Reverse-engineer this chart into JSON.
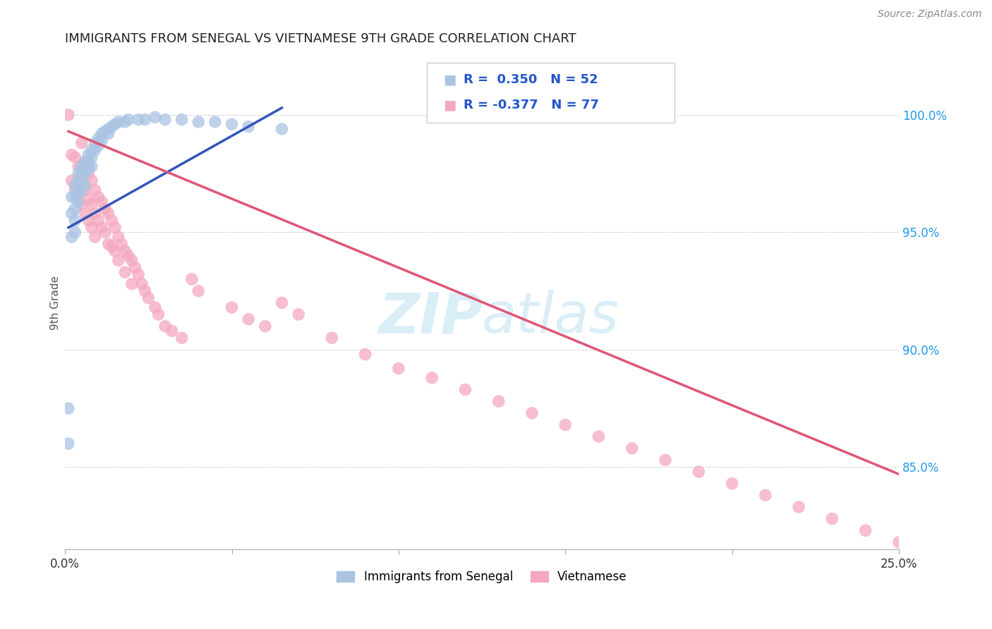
{
  "title": "IMMIGRANTS FROM SENEGAL VS VIETNAMESE 9TH GRADE CORRELATION CHART",
  "source": "Source: ZipAtlas.com",
  "ylabel": "9th Grade",
  "ytick_values": [
    0.85,
    0.9,
    0.95,
    1.0
  ],
  "xlim": [
    0.0,
    0.25
  ],
  "ylim": [
    0.815,
    1.025
  ],
  "legend_r_senegal": "R =  0.350",
  "legend_n_senegal": "N = 52",
  "legend_r_vietnamese": "R = -0.377",
  "legend_n_vietnamese": "N = 77",
  "color_senegal": "#aac4e2",
  "color_vietnamese": "#f4a8be",
  "line_color_senegal": "#3355bb",
  "line_color_vietnamese": "#e05575",
  "watermark_color": "#daeef8",
  "senegal_x": [
    0.001,
    0.001,
    0.002,
    0.002,
    0.002,
    0.003,
    0.003,
    0.003,
    0.003,
    0.003,
    0.004,
    0.004,
    0.004,
    0.004,
    0.005,
    0.005,
    0.005,
    0.005,
    0.006,
    0.006,
    0.006,
    0.006,
    0.007,
    0.007,
    0.007,
    0.008,
    0.008,
    0.008,
    0.009,
    0.009,
    0.01,
    0.01,
    0.011,
    0.011,
    0.012,
    0.013,
    0.013,
    0.014,
    0.015,
    0.016,
    0.018,
    0.019,
    0.022,
    0.024,
    0.027,
    0.03,
    0.035,
    0.04,
    0.045,
    0.05,
    0.055,
    0.065
  ],
  "senegal_y": [
    0.875,
    0.86,
    0.965,
    0.958,
    0.948,
    0.97,
    0.965,
    0.96,
    0.955,
    0.95,
    0.975,
    0.972,
    0.967,
    0.963,
    0.978,
    0.975,
    0.972,
    0.968,
    0.98,
    0.978,
    0.975,
    0.97,
    0.983,
    0.98,
    0.977,
    0.985,
    0.982,
    0.978,
    0.988,
    0.985,
    0.99,
    0.987,
    0.992,
    0.989,
    0.993,
    0.994,
    0.992,
    0.995,
    0.996,
    0.997,
    0.997,
    0.998,
    0.998,
    0.998,
    0.999,
    0.998,
    0.998,
    0.997,
    0.997,
    0.996,
    0.995,
    0.994
  ],
  "vietnamese_x": [
    0.001,
    0.002,
    0.002,
    0.003,
    0.003,
    0.004,
    0.004,
    0.005,
    0.005,
    0.005,
    0.006,
    0.006,
    0.006,
    0.007,
    0.007,
    0.007,
    0.008,
    0.008,
    0.008,
    0.009,
    0.009,
    0.009,
    0.01,
    0.01,
    0.011,
    0.011,
    0.012,
    0.012,
    0.013,
    0.013,
    0.014,
    0.014,
    0.015,
    0.015,
    0.016,
    0.016,
    0.017,
    0.018,
    0.018,
    0.019,
    0.02,
    0.02,
    0.021,
    0.022,
    0.023,
    0.024,
    0.025,
    0.027,
    0.028,
    0.03,
    0.032,
    0.035,
    0.038,
    0.04,
    0.05,
    0.055,
    0.06,
    0.065,
    0.07,
    0.08,
    0.09,
    0.1,
    0.11,
    0.12,
    0.13,
    0.14,
    0.15,
    0.16,
    0.17,
    0.18,
    0.19,
    0.2,
    0.21,
    0.22,
    0.23,
    0.24,
    0.25
  ],
  "vietnamese_y": [
    1.0,
    0.983,
    0.972,
    0.982,
    0.968,
    0.978,
    0.966,
    0.988,
    0.975,
    0.962,
    0.98,
    0.968,
    0.958,
    0.975,
    0.964,
    0.955,
    0.972,
    0.962,
    0.952,
    0.968,
    0.958,
    0.948,
    0.965,
    0.955,
    0.963,
    0.952,
    0.96,
    0.95,
    0.958,
    0.945,
    0.955,
    0.944,
    0.952,
    0.942,
    0.948,
    0.938,
    0.945,
    0.942,
    0.933,
    0.94,
    0.938,
    0.928,
    0.935,
    0.932,
    0.928,
    0.925,
    0.922,
    0.918,
    0.915,
    0.91,
    0.908,
    0.905,
    0.93,
    0.925,
    0.918,
    0.913,
    0.91,
    0.92,
    0.915,
    0.905,
    0.898,
    0.892,
    0.888,
    0.883,
    0.878,
    0.873,
    0.868,
    0.863,
    0.858,
    0.853,
    0.848,
    0.843,
    0.838,
    0.833,
    0.828,
    0.823,
    0.818
  ],
  "senegal_line_x": [
    0.001,
    0.065
  ],
  "senegal_line_y": [
    0.952,
    1.003
  ],
  "vietnamese_line_x": [
    0.001,
    0.25
  ],
  "vietnamese_line_y": [
    0.993,
    0.847
  ]
}
